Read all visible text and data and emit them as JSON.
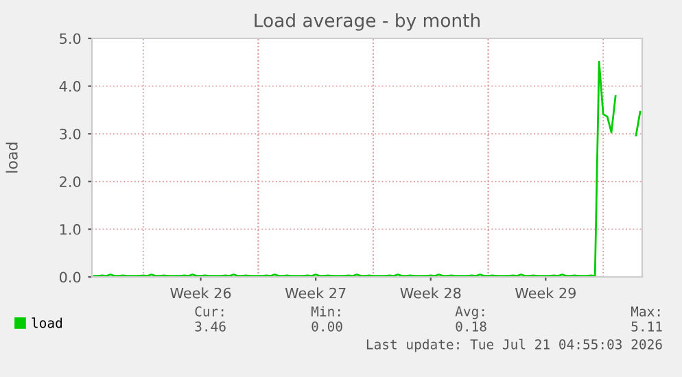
{
  "chart_data": {
    "type": "line",
    "title": "Load average - by month",
    "ylabel": "load",
    "categories": [
      null,
      null,
      null,
      null,
      null,
      null,
      null,
      null,
      null,
      null,
      null,
      null,
      null,
      null,
      null,
      null,
      null,
      null,
      null,
      null,
      null,
      null,
      null,
      null,
      null,
      null,
      "Week 26",
      null,
      null,
      null,
      null,
      null,
      null,
      null,
      null,
      null,
      null,
      null,
      null,
      null,
      null,
      null,
      null,
      null,
      null,
      null,
      null,
      null,
      null,
      null,
      null,
      null,
      null,
      null,
      "Week 27",
      null,
      null,
      null,
      null,
      null,
      null,
      null,
      null,
      null,
      null,
      null,
      null,
      null,
      null,
      null,
      null,
      null,
      null,
      null,
      null,
      null,
      null,
      null,
      null,
      null,
      null,
      null,
      "Week 28",
      null,
      null,
      null,
      null,
      null,
      null,
      null,
      null,
      null,
      null,
      null,
      null,
      null,
      null,
      null,
      null,
      null,
      null,
      null,
      null,
      null,
      null,
      null,
      null,
      null,
      null,
      null,
      "Week 29",
      null,
      null,
      null,
      null,
      null,
      null,
      null,
      null,
      null,
      null,
      null,
      null,
      null,
      null,
      null,
      null,
      null,
      null,
      null,
      null,
      null,
      null,
      null
    ],
    "series": [
      {
        "name": "load",
        "color": "#00cc00",
        "values": [
          0.02,
          0.02,
          0.03,
          0.02,
          0.05,
          0.02,
          0.02,
          0.03,
          0.02,
          0.02,
          0.02,
          0.02,
          0.03,
          0.02,
          0.05,
          0.02,
          0.02,
          0.03,
          0.02,
          0.02,
          0.02,
          0.02,
          0.03,
          0.02,
          0.05,
          0.02,
          0.02,
          0.03,
          0.02,
          0.02,
          0.02,
          0.02,
          0.03,
          0.02,
          0.05,
          0.02,
          0.02,
          0.03,
          0.02,
          0.02,
          0.02,
          0.02,
          0.03,
          0.02,
          0.05,
          0.02,
          0.02,
          0.03,
          0.02,
          0.02,
          0.02,
          0.02,
          0.03,
          0.02,
          0.05,
          0.02,
          0.02,
          0.03,
          0.02,
          0.02,
          0.02,
          0.02,
          0.03,
          0.02,
          0.05,
          0.02,
          0.02,
          0.03,
          0.02,
          0.02,
          0.02,
          0.02,
          0.03,
          0.02,
          0.05,
          0.02,
          0.02,
          0.03,
          0.02,
          0.02,
          0.02,
          0.02,
          0.03,
          0.02,
          0.05,
          0.02,
          0.02,
          0.03,
          0.02,
          0.02,
          0.02,
          0.02,
          0.03,
          0.02,
          0.05,
          0.02,
          0.02,
          0.03,
          0.02,
          0.02,
          0.02,
          0.02,
          0.03,
          0.02,
          0.05,
          0.02,
          0.02,
          0.03,
          0.02,
          0.02,
          0.02,
          0.02,
          0.03,
          0.02,
          0.05,
          0.02,
          0.02,
          0.03,
          0.02,
          0.02,
          0.02,
          0.03,
          0.02,
          4.51,
          3.41,
          3.36,
          3.03,
          3.79,
          null,
          null,
          null,
          null,
          2.97,
          3.46
        ]
      }
    ],
    "ylim": [
      0,
      5
    ],
    "yticks": [
      {
        "value": 0,
        "label": "0.0"
      },
      {
        "value": 1,
        "label": "1.0"
      },
      {
        "value": 2,
        "label": "2.0"
      },
      {
        "value": 3,
        "label": "3.0"
      },
      {
        "value": 4,
        "label": "4.0"
      },
      {
        "value": 5,
        "label": "5.0"
      }
    ],
    "grid": true,
    "legend": "bottom left",
    "marker": "none",
    "line_style": "solid",
    "annotations": [
      "Cur:",
      "3.46",
      "Min:",
      "0.00",
      "Avg:",
      "0.18",
      "Max:",
      "5.11",
      "Last update: Tue Jul 21 04:55:03 2026"
    ]
  }
}
